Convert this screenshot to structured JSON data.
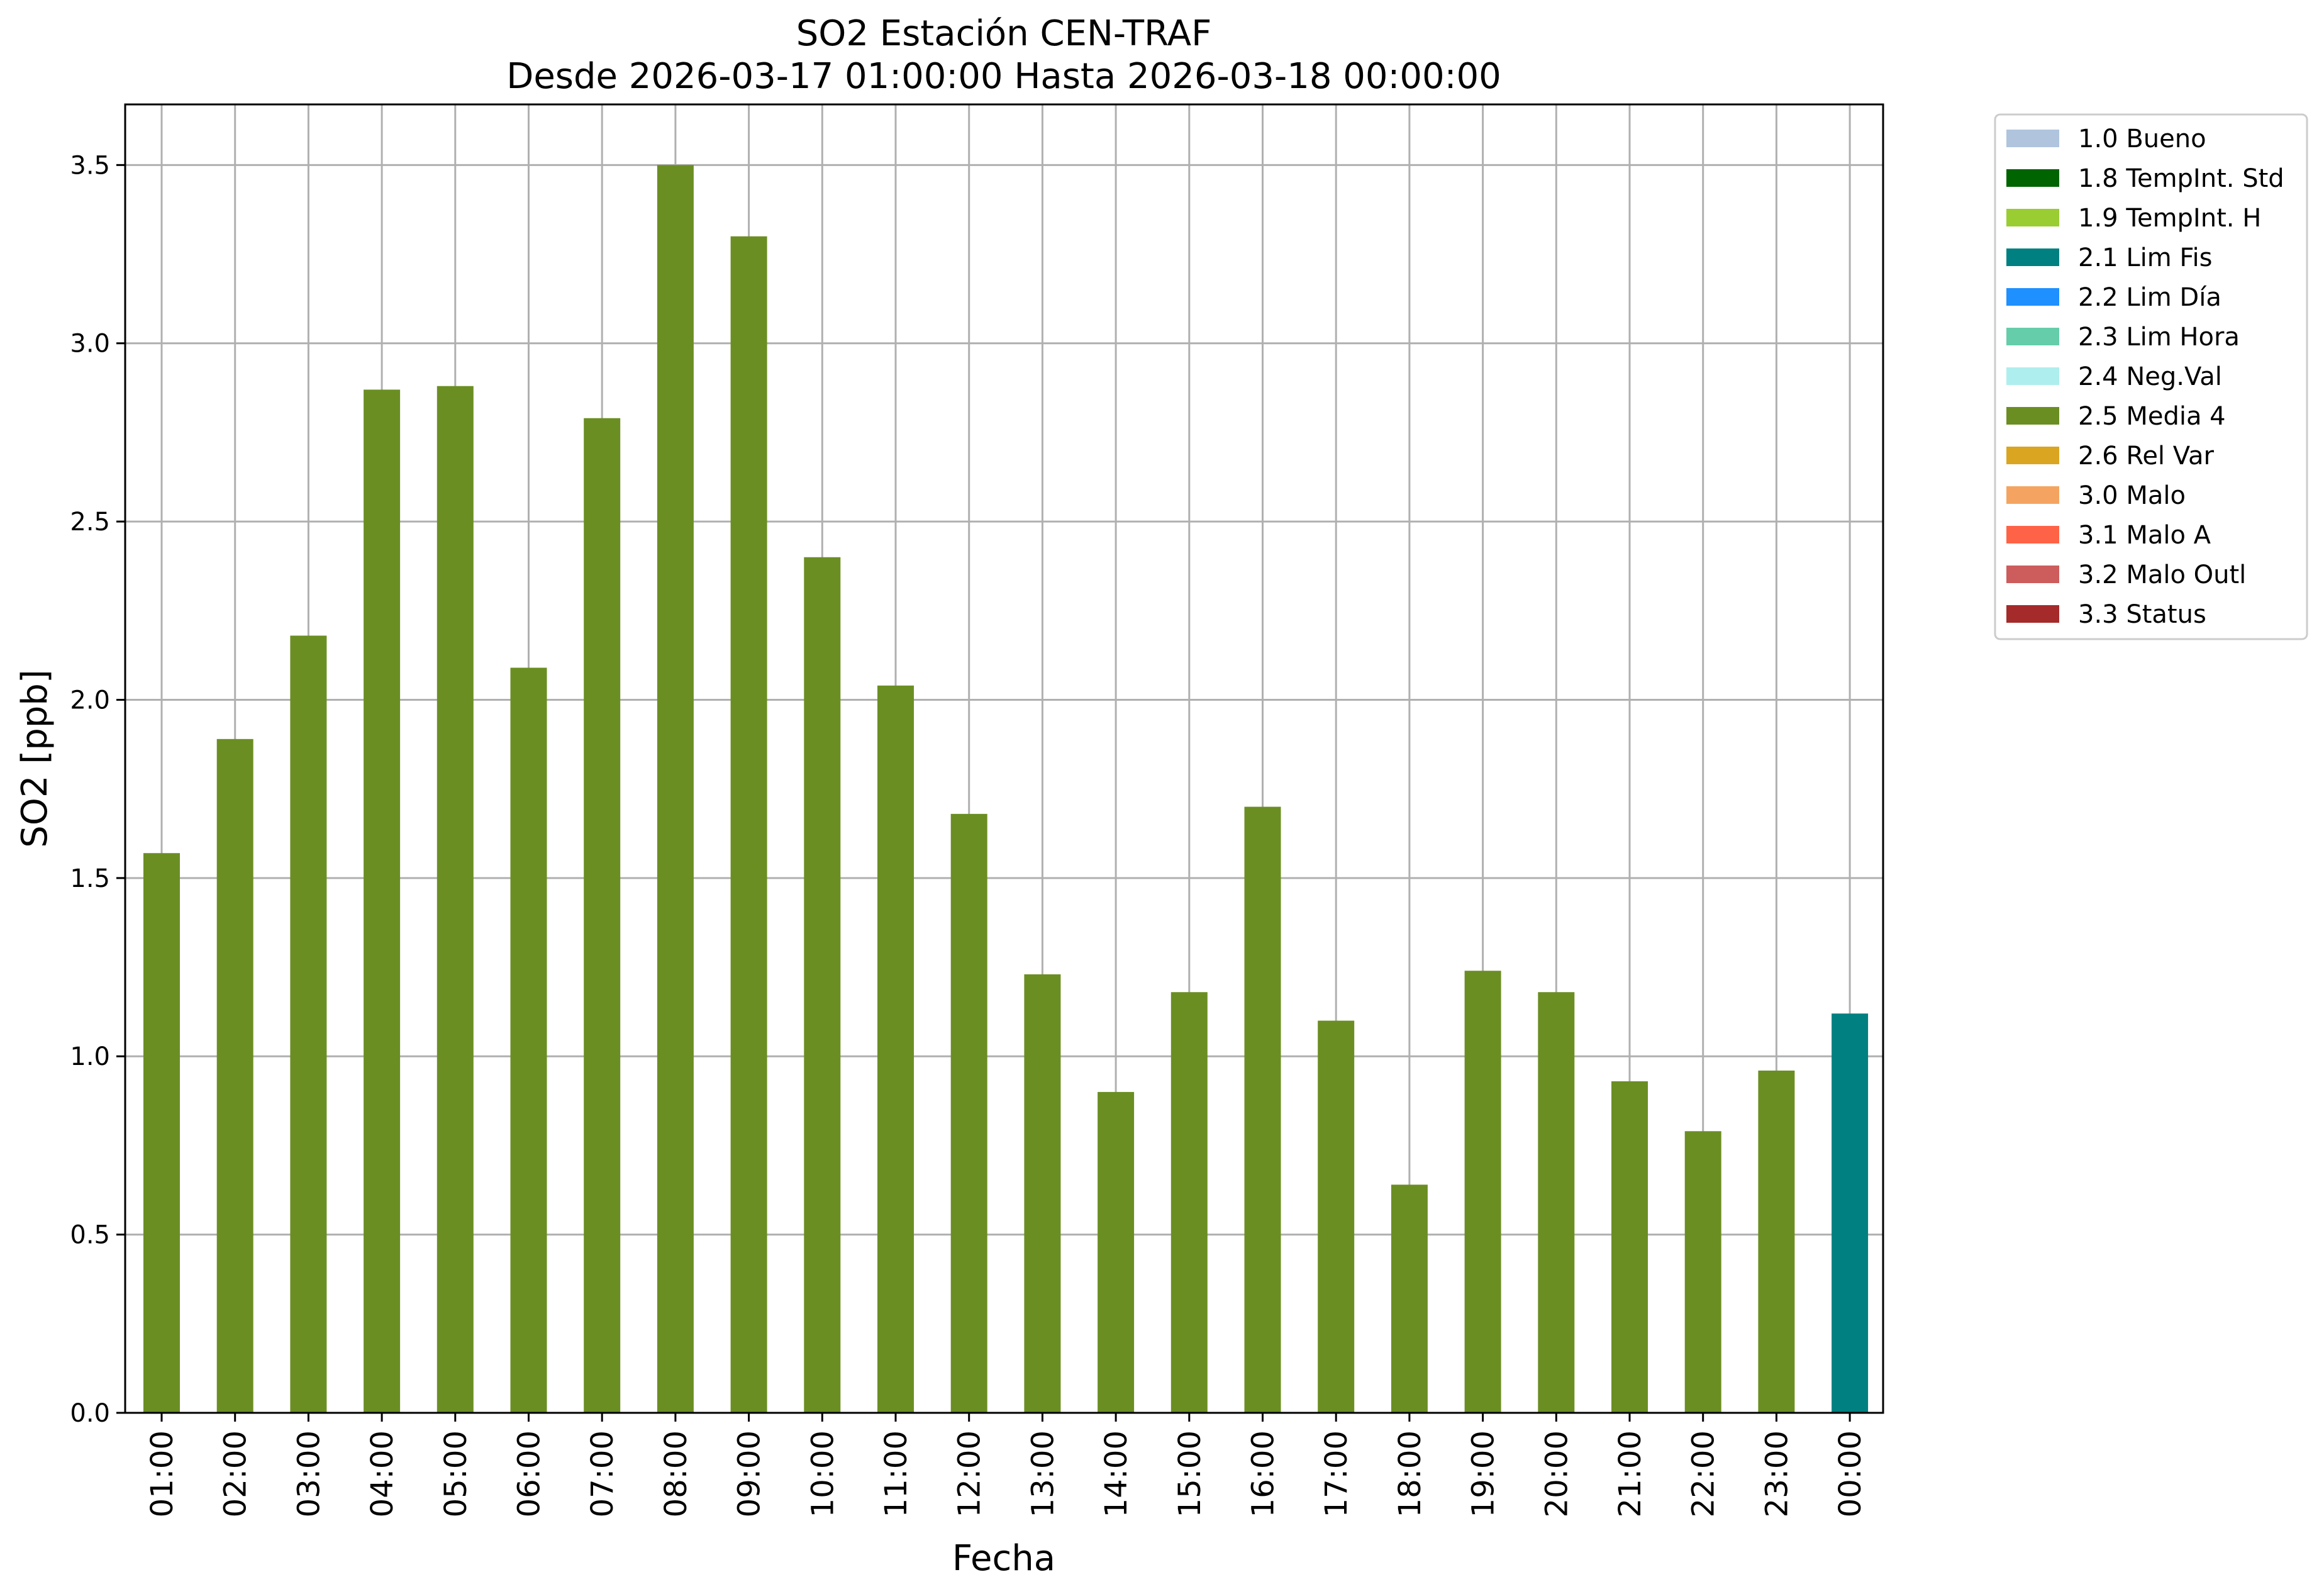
{
  "chart_data": {
    "type": "bar",
    "title": "SO2 Estación CEN-TRAF",
    "subtitle": "Desde 2026-03-17 01:00:00 Hasta 2026-03-18 00:00:00",
    "xlabel": "Fecha",
    "ylabel": "SO2 [ppb]",
    "ylim": [
      0,
      3.67
    ],
    "yticks": [
      "0.0",
      "0.5",
      "1.0",
      "1.5",
      "2.0",
      "2.5",
      "3.0",
      "3.5"
    ],
    "grid": true,
    "legend_position": "outside-top-right",
    "categories": [
      "01:00",
      "02:00",
      "03:00",
      "04:00",
      "05:00",
      "06:00",
      "07:00",
      "08:00",
      "09:00",
      "10:00",
      "11:00",
      "12:00",
      "13:00",
      "14:00",
      "15:00",
      "16:00",
      "17:00",
      "18:00",
      "19:00",
      "20:00",
      "21:00",
      "22:00",
      "23:00",
      "00:00"
    ],
    "values": [
      1.57,
      1.89,
      2.18,
      2.87,
      2.88,
      2.09,
      2.79,
      3.5,
      3.3,
      2.4,
      2.04,
      1.68,
      1.23,
      0.9,
      1.18,
      1.7,
      1.1,
      0.64,
      1.24,
      1.18,
      0.93,
      0.79,
      0.96,
      1.12
    ],
    "flags": [
      "2.5 Media 4",
      "2.5 Media 4",
      "2.5 Media 4",
      "2.5 Media 4",
      "2.5 Media 4",
      "2.5 Media 4",
      "2.5 Media 4",
      "2.5 Media 4",
      "2.5 Media 4",
      "2.5 Media 4",
      "2.5 Media 4",
      "2.5 Media 4",
      "2.5 Media 4",
      "2.5 Media 4",
      "2.5 Media 4",
      "2.5 Media 4",
      "2.5 Media 4",
      "2.5 Media 4",
      "2.5 Media 4",
      "2.5 Media 4",
      "2.5 Media 4",
      "2.5 Media 4",
      "2.5 Media 4",
      "2.1 Lim Fis"
    ],
    "legend": [
      {
        "label": "1.0 Bueno",
        "color": "#b0c4de"
      },
      {
        "label": "1.8 TempInt. Std",
        "color": "#006400"
      },
      {
        "label": "1.9 TempInt. H",
        "color": "#9acd32"
      },
      {
        "label": "2.1 Lim Fis",
        "color": "#008080"
      },
      {
        "label": "2.2 Lim Día",
        "color": "#1e90ff"
      },
      {
        "label": "2.3 Lim Hora",
        "color": "#66cdaa"
      },
      {
        "label": "2.4 Neg.Val",
        "color": "#afeeee"
      },
      {
        "label": "2.5 Media 4",
        "color": "#6b8e23"
      },
      {
        "label": "2.6 Rel Var",
        "color": "#daa520"
      },
      {
        "label": "3.0 Malo",
        "color": "#f4a460"
      },
      {
        "label": "3.1 Malo A",
        "color": "#ff6347"
      },
      {
        "label": "3.2 Malo Outl",
        "color": "#cd5c5c"
      },
      {
        "label": "3.3 Status",
        "color": "#a52a2a"
      }
    ]
  }
}
